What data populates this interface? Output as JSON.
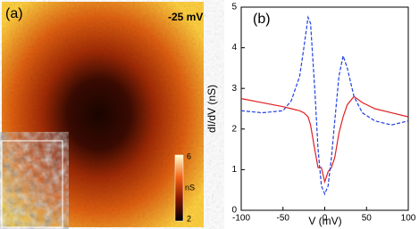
{
  "image_panel": {
    "label": "(a)",
    "bias": "-25 mV",
    "colorbar_top": "6",
    "colorbar_unit": "nS",
    "colorbar_bottom": "2"
  },
  "chart_data": {
    "type": "line",
    "panel_label": "(b)",
    "x_label": "V (mV)",
    "y_label": "dI/dV (nS)",
    "x": [
      -100,
      -75,
      -50,
      -40,
      -30,
      -25,
      -20,
      -17,
      -12,
      -8,
      -4,
      0,
      4,
      8,
      12,
      17,
      22,
      27,
      35,
      45,
      60,
      80,
      100
    ],
    "series": [
      {
        "color": "#e02020",
        "dash": false,
        "values": [
          2.75,
          2.65,
          2.55,
          2.5,
          2.45,
          2.4,
          2.3,
          2.1,
          1.5,
          1.05,
          1.05,
          0.7,
          0.95,
          1.05,
          1.3,
          1.9,
          2.3,
          2.6,
          2.8,
          2.65,
          2.5,
          2.4,
          2.3
        ]
      },
      {
        "color": "#2040e0",
        "dash": true,
        "values": [
          2.45,
          2.4,
          2.45,
          2.7,
          3.3,
          4.0,
          4.75,
          4.6,
          3.0,
          1.5,
          0.6,
          0.4,
          0.6,
          1.3,
          2.2,
          3.3,
          3.8,
          3.5,
          2.8,
          2.4,
          2.2,
          2.1,
          2.2
        ]
      }
    ],
    "xlim": [
      -100,
      100
    ],
    "xticks": [
      -100,
      -50,
      0,
      50,
      100
    ],
    "ylim": [
      0,
      5
    ],
    "yticks": [
      0,
      1,
      2,
      3,
      4,
      5
    ]
  }
}
